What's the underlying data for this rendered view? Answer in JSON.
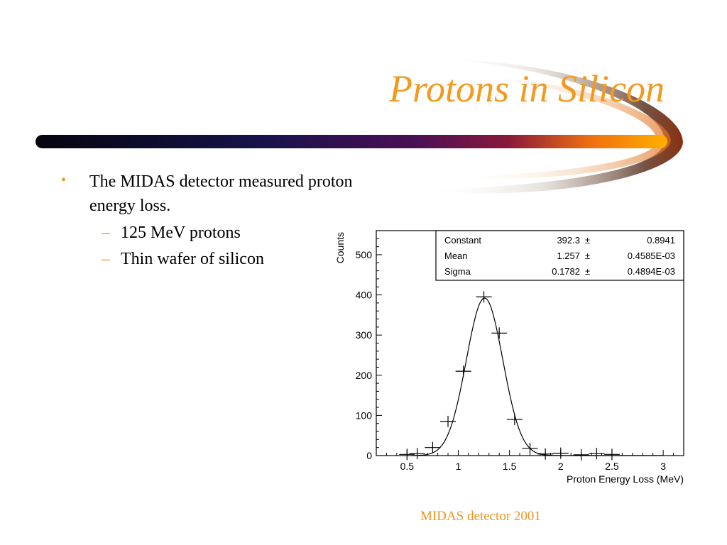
{
  "slide": {
    "title": "Protons in Silicon",
    "bullet": "The MIDAS detector measured proton energy loss.",
    "subbullets": [
      "125 MeV protons",
      "Thin wafer of silicon"
    ],
    "caption": "MIDAS detector 2001",
    "bullet_marker": "•",
    "sub_marker": "–",
    "accent_color": "#f39a1e"
  },
  "chart_data": {
    "type": "scatter",
    "xlabel": "Proton Energy Loss (MeV)",
    "ylabel": "Counts",
    "xlim": [
      0.2,
      3.2
    ],
    "ylim": [
      0,
      560
    ],
    "x_ticks": [
      "0.5",
      "1",
      "1.5",
      "2",
      "2.5",
      "3"
    ],
    "y_ticks": [
      "0",
      "100",
      "200",
      "300",
      "400",
      "500"
    ],
    "points": [
      {
        "x": 0.5,
        "y": 3
      },
      {
        "x": 0.6,
        "y": 5
      },
      {
        "x": 0.75,
        "y": 20
      },
      {
        "x": 0.9,
        "y": 85
      },
      {
        "x": 1.05,
        "y": 210
      },
      {
        "x": 1.25,
        "y": 395
      },
      {
        "x": 1.4,
        "y": 305
      },
      {
        "x": 1.55,
        "y": 90
      },
      {
        "x": 1.7,
        "y": 18
      },
      {
        "x": 1.85,
        "y": 4
      },
      {
        "x": 2.0,
        "y": 6
      },
      {
        "x": 2.2,
        "y": 2
      },
      {
        "x": 2.35,
        "y": 5
      },
      {
        "x": 2.5,
        "y": 3
      }
    ],
    "fit": {
      "type": "gaussian"
    },
    "stats": [
      {
        "name": "Constant",
        "value": "392.3",
        "pm": "±",
        "error": "0.8941"
      },
      {
        "name": "Mean",
        "value": "1.257",
        "pm": "±",
        "error": "0.4585E-03"
      },
      {
        "name": "Sigma",
        "value": "0.1782",
        "pm": "±",
        "error": "0.4894E-03"
      }
    ]
  }
}
